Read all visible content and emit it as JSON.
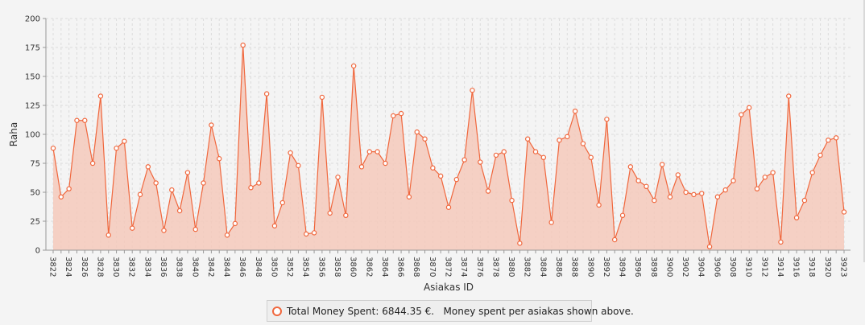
{
  "colors": {
    "series": "#f0673d",
    "fill": "#f5c9bb",
    "grid": "#dcdcdc",
    "axis": "#999999"
  },
  "legend": {
    "text": "Total Money Spent: 6844.35 €.   Money spent per asiakas shown above."
  },
  "chart_data": {
    "type": "area",
    "xlabel": "Asiakas ID",
    "ylabel": "Raha",
    "ylim": [
      0,
      200
    ],
    "yticks": [
      0,
      25,
      50,
      75,
      100,
      125,
      150,
      175,
      200
    ],
    "xtick_labels": [
      "3822",
      "3824",
      "3826",
      "3828",
      "3830",
      "3832",
      "3834",
      "3836",
      "3838",
      "3840",
      "3842",
      "3844",
      "3846",
      "3848",
      "3850",
      "3852",
      "3854",
      "3856",
      "3858",
      "3860",
      "3862",
      "3864",
      "3866",
      "3868",
      "3870",
      "3872",
      "3874",
      "3876",
      "3878",
      "3880",
      "3882",
      "3884",
      "3886",
      "3888",
      "3890",
      "3892",
      "3894",
      "3896",
      "3898",
      "3900",
      "3902",
      "3904",
      "3906",
      "3908",
      "3910",
      "3912",
      "3914",
      "3916",
      "3918",
      "3920",
      "3923"
    ],
    "grid": true,
    "legend_position": "bottom-center",
    "x": [
      3822,
      3823,
      3824,
      3825,
      3826,
      3827,
      3828,
      3829,
      3830,
      3831,
      3832,
      3833,
      3834,
      3835,
      3836,
      3837,
      3838,
      3839,
      3840,
      3841,
      3842,
      3843,
      3844,
      3845,
      3846,
      3847,
      3848,
      3849,
      3850,
      3851,
      3852,
      3853,
      3854,
      3855,
      3856,
      3857,
      3858,
      3859,
      3860,
      3861,
      3862,
      3863,
      3864,
      3865,
      3866,
      3867,
      3868,
      3869,
      3870,
      3871,
      3872,
      3873,
      3874,
      3875,
      3876,
      3877,
      3878,
      3879,
      3880,
      3881,
      3882,
      3883,
      3884,
      3885,
      3886,
      3887,
      3888,
      3889,
      3890,
      3891,
      3892,
      3893,
      3894,
      3895,
      3896,
      3897,
      3898,
      3899,
      3900,
      3901,
      3902,
      3903,
      3904,
      3905,
      3906,
      3907,
      3908,
      3909,
      3910,
      3911,
      3912,
      3913,
      3914,
      3915,
      3916,
      3917,
      3918,
      3919,
      3920,
      3921,
      3923
    ],
    "values": [
      88,
      46,
      53,
      112,
      112,
      75,
      133,
      13,
      88,
      94,
      19,
      48,
      72,
      58,
      17,
      52,
      34,
      67,
      18,
      58,
      108,
      79,
      13,
      23,
      177,
      54,
      58,
      135,
      21,
      41,
      84,
      73,
      14,
      15,
      132,
      32,
      63,
      30,
      159,
      72,
      85,
      85,
      75,
      116,
      118,
      46,
      102,
      96,
      71,
      64,
      37,
      61,
      78,
      138,
      76,
      51,
      82,
      85,
      43,
      6,
      96,
      85,
      80,
      24,
      95,
      98,
      120,
      92,
      80,
      39,
      113,
      9,
      30,
      72,
      60,
      55,
      43,
      74,
      46,
      65,
      50,
      48,
      49,
      3,
      46,
      52,
      60,
      117,
      123,
      53,
      63,
      67,
      7,
      133,
      28,
      43,
      67,
      82,
      95,
      97,
      33
    ]
  }
}
